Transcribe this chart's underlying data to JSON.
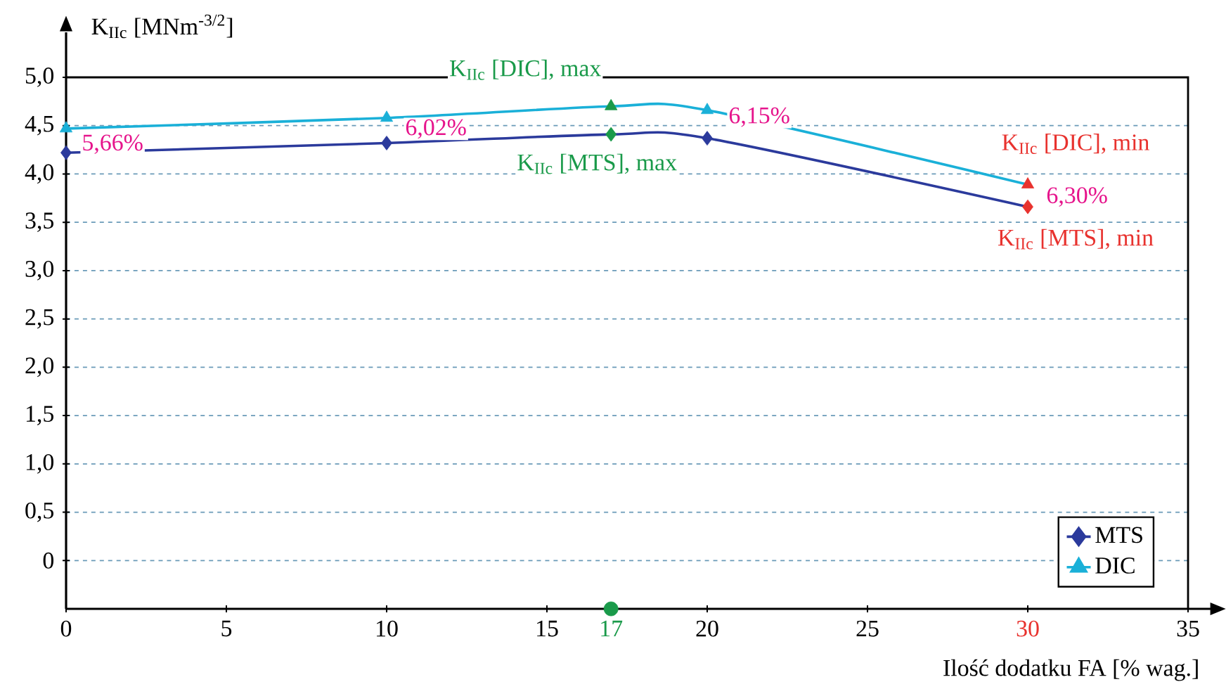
{
  "chart_data": {
    "type": "line",
    "xlabel": "Ilość dodatku FA [% wag.]",
    "ylabel": "K$_{IIc}$ [MNm$^{-3/2}$]",
    "x": [
      0,
      10,
      17,
      20,
      30
    ],
    "series": [
      {
        "name": "MTS",
        "color": "#2b3a9c",
        "marker": "diamond",
        "values": [
          4.22,
          4.32,
          4.41,
          4.37,
          3.66
        ],
        "colors": [
          "#2b3a9c",
          "#2b3a9c",
          "#1a9a4a",
          "#2b3a9c",
          "#e8322e"
        ]
      },
      {
        "name": "DIC",
        "color": "#1ab0d8",
        "marker": "triangle",
        "values": [
          4.47,
          4.58,
          4.7,
          4.66,
          3.89
        ],
        "colors": [
          "#1ab0d8",
          "#1ab0d8",
          "#1a9a4a",
          "#1ab0d8",
          "#e8322e"
        ]
      },
      {
        "type": "scatter",
        "color": "#1a9a4a",
        "marker": "circle",
        "x": [
          17
        ],
        "values": [
          -0.5
        ]
      }
    ],
    "xlim": [
      0,
      35
    ],
    "ylim": [
      -0.5,
      5.0
    ],
    "xticks": [
      0,
      5,
      10,
      15,
      17,
      20,
      25,
      30,
      35
    ],
    "yticks": [
      0,
      {
        "value": 0.5,
        "label": "0,5"
      },
      {
        "value": 1.0,
        "label": "1,0"
      },
      {
        "value": 1.5,
        "label": "1,5"
      },
      {
        "value": 2.0,
        "label": "2,0"
      },
      {
        "value": 2.5,
        "label": "2,5"
      },
      {
        "value": 3.0,
        "label": "3,0"
      },
      {
        "value": 3.5,
        "label": "3,5"
      },
      {
        "value": 4.0,
        "label": "4,0"
      },
      {
        "value": 4.5,
        "label": "4,5"
      },
      {
        "value": 5.0,
        "label": "5,0"
      }
    ],
    "annotations": [
      {
        "text": "5,66%",
        "x": 0,
        "y": 4.22
      },
      {
        "text": "6,02%",
        "x": 10,
        "y": 4.32
      },
      {
        "text": "6,15%",
        "x": 20,
        "y": 4.37
      },
      {
        "text": "6,30%",
        "x": 30,
        "y": 3.66
      },
      {
        "text": "K$_{IIc}$ [DIC], max",
        "x": 17,
        "y": 4.7
      },
      {
        "text": "K$_{IIc}$ [MTS], max",
        "x": 17,
        "y": 4.41
      },
      {
        "text": "K$_{IIc}$ [DIC], min",
        "x": 30,
        "y": 3.89
      },
      {
        "text": "K$_{IIc}$ [MTS], min",
        "x": 30,
        "y": 3.66
      }
    ],
    "grid": "y",
    "legend": "bottom right"
  }
}
